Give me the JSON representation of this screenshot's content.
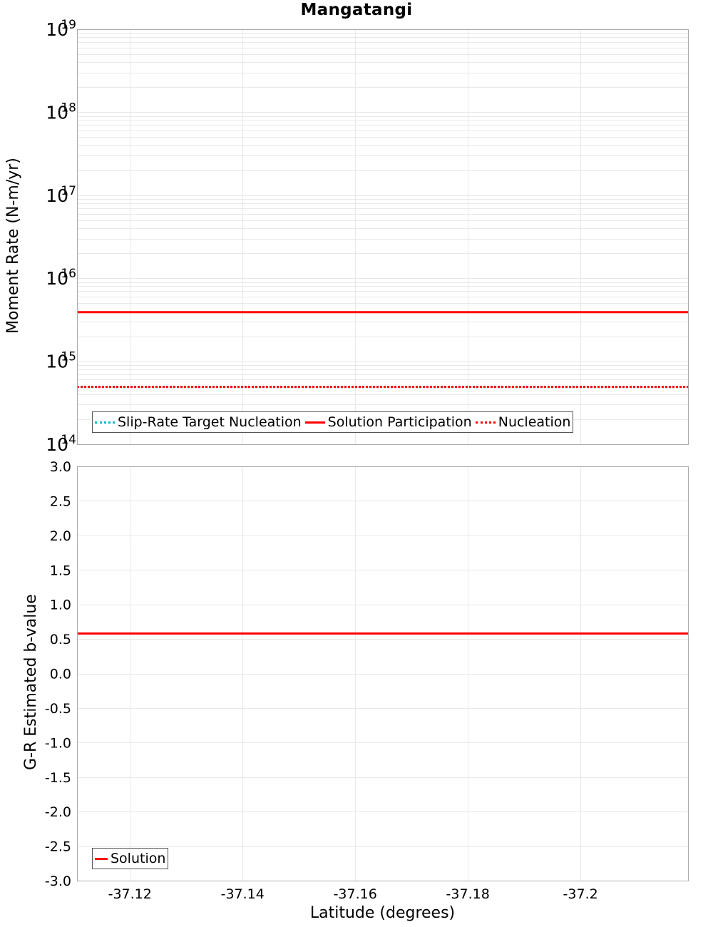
{
  "title": "Mangatangi",
  "colors": {
    "solution": "#ff0000",
    "nucleation": "#ff0000",
    "slip_rate_target": "#00bcc8",
    "grid": "#e8e8e8",
    "frame": "#aaaaaa"
  },
  "top_plot": {
    "ylabel": "Moment Rate (N-m/yr)",
    "yticks": [
      {
        "base": "10",
        "exp": "19"
      },
      {
        "base": "10",
        "exp": "18"
      },
      {
        "base": "10",
        "exp": "17"
      },
      {
        "base": "10",
        "exp": "16"
      },
      {
        "base": "10",
        "exp": "15"
      },
      {
        "base": "10",
        "exp": "14"
      }
    ],
    "legend": [
      {
        "label": "Slip-Rate Target Nucleation",
        "style": "dotted",
        "color": "#00bcc8"
      },
      {
        "label": "Solution Participation",
        "style": "solid",
        "color": "#ff0000"
      },
      {
        "label": "Nucleation",
        "style": "dotted",
        "color": "#ff0000"
      }
    ]
  },
  "bottom_plot": {
    "ylabel": "G-R Estimated b-value",
    "yticks": [
      "3.0",
      "2.5",
      "2.0",
      "1.5",
      "1.0",
      "0.5",
      "0.0",
      "-0.5",
      "-1.0",
      "-1.5",
      "-2.0",
      "-2.5",
      "-3.0"
    ],
    "legend": [
      {
        "label": "Solution",
        "style": "solid",
        "color": "#ff0000"
      }
    ]
  },
  "xaxis": {
    "label": "Latitude (degrees)",
    "ticks": [
      "-37.12",
      "-37.14",
      "-37.16",
      "-37.18",
      "-37.2"
    ]
  },
  "chart_data": [
    {
      "type": "line",
      "title": "Mangatangi",
      "xlabel": "Latitude (degrees)",
      "ylabel": "Moment Rate (N-m/yr)",
      "yscale": "log",
      "ylim": [
        100000000000000.0,
        1e+19
      ],
      "xlim": [
        -37.1106,
        -37.2191
      ],
      "x_inverted": true,
      "grid": true,
      "legend_position": "lower-left",
      "x": [
        -37.1106,
        -37.2191
      ],
      "series": [
        {
          "name": "Slip-Rate Target Nucleation",
          "style": "dotted",
          "color": "#00bcc8",
          "values": [
            490000000000000.0,
            490000000000000.0
          ]
        },
        {
          "name": "Solution Participation",
          "style": "solid",
          "color": "#ff0000",
          "values": [
            3900000000000000.0,
            3900000000000000.0
          ]
        },
        {
          "name": "Nucleation",
          "style": "dotted",
          "color": "#ff0000",
          "values": [
            490000000000000.0,
            490000000000000.0
          ]
        }
      ]
    },
    {
      "type": "line",
      "xlabel": "Latitude (degrees)",
      "ylabel": "G-R Estimated b-value",
      "ylim": [
        -3.0,
        3.0
      ],
      "xlim": [
        -37.1106,
        -37.2191
      ],
      "x_inverted": true,
      "grid": true,
      "legend_position": "lower-left",
      "x": [
        -37.1106,
        -37.2191
      ],
      "xticks": [
        "-37.12",
        "-37.14",
        "-37.16",
        "-37.18",
        "-37.2"
      ],
      "series": [
        {
          "name": "Solution",
          "style": "solid",
          "color": "#ff0000",
          "values": [
            0.58,
            0.58
          ]
        }
      ]
    }
  ]
}
